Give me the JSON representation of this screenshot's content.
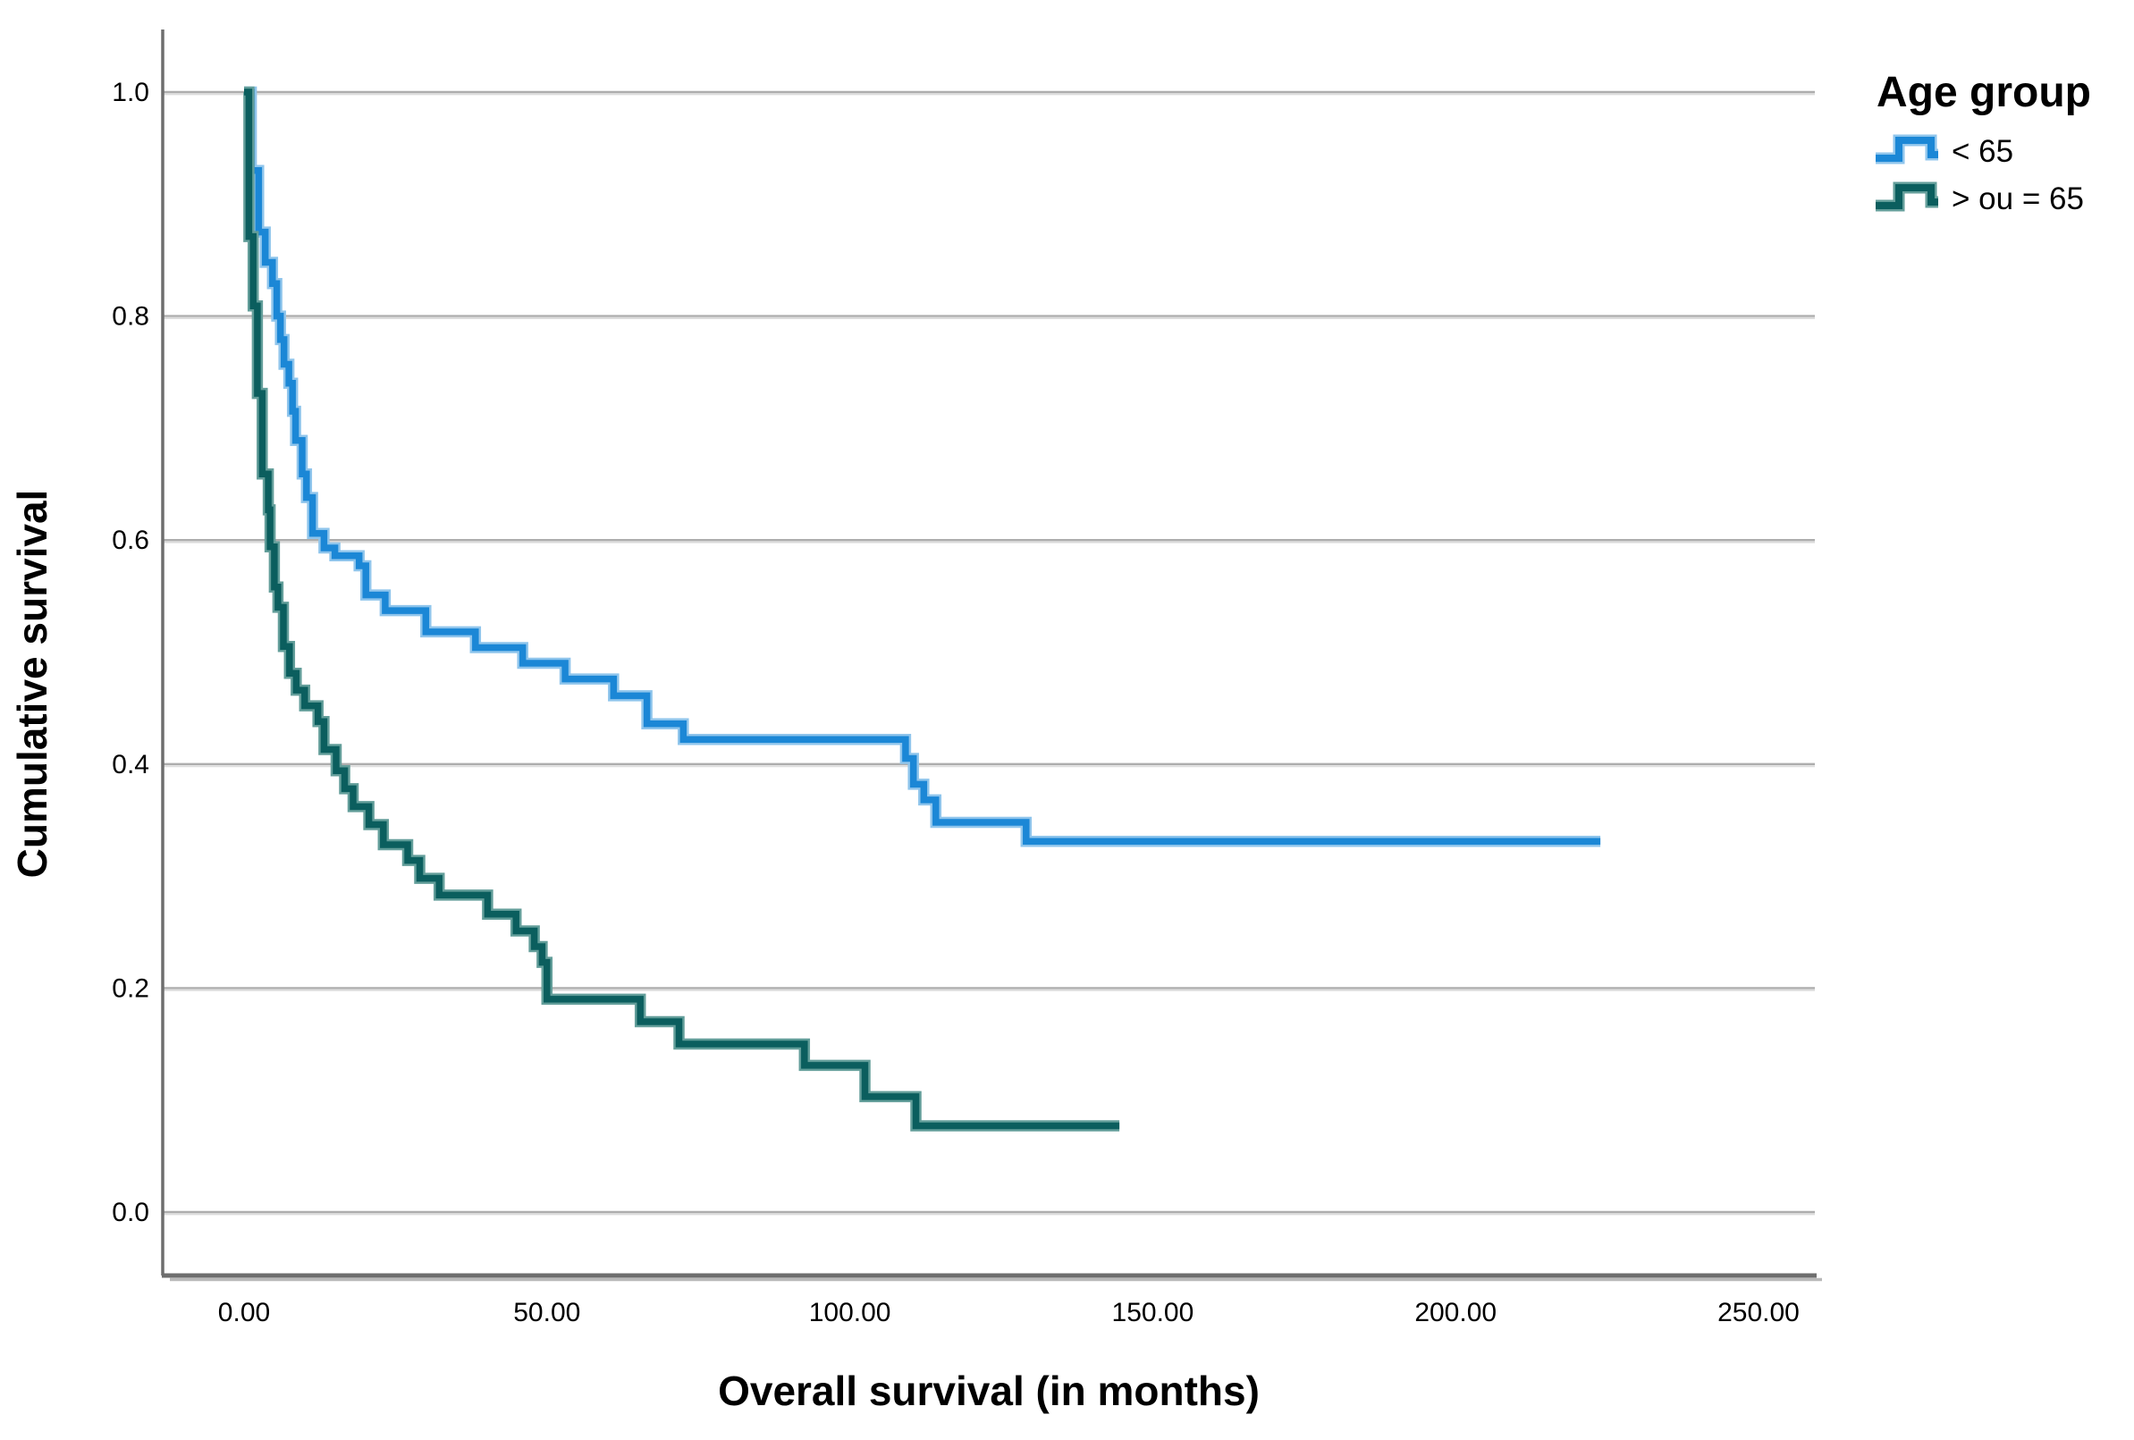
{
  "chart_data": {
    "type": "line",
    "subtype": "kaplan-meier-step",
    "title": "",
    "xlabel": "Overall survival (in months)",
    "ylabel": "Cumulative survival",
    "xlim": [
      -13,
      259
    ],
    "ylim": [
      0,
      1.05
    ],
    "grid": true,
    "grid_color": "#ADADAD",
    "grid_shadow_color": "#DCDCDC",
    "axis_color": "#6E6E6E",
    "axis_shadow_color": "#B9B9B9",
    "x_ticks": [
      {
        "value": 0,
        "label": "0.00"
      },
      {
        "value": 50,
        "label": "50.00"
      },
      {
        "value": 100,
        "label": "100.00"
      },
      {
        "value": 150,
        "label": "150.00"
      },
      {
        "value": 200,
        "label": "200.00"
      },
      {
        "value": 250,
        "label": "250.00"
      }
    ],
    "y_ticks": [
      {
        "value": 0.0,
        "label": "0.0"
      },
      {
        "value": 0.2,
        "label": "0.2"
      },
      {
        "value": 0.4,
        "label": "0.4"
      },
      {
        "value": 0.6,
        "label": "0.6"
      },
      {
        "value": 0.8,
        "label": "0.8"
      },
      {
        "value": 1.0,
        "label": "1.0"
      }
    ],
    "legend": {
      "title": "Age group",
      "position": "top-right"
    },
    "series": [
      {
        "name": "< 65",
        "color": "#1B87D6",
        "halo_color": "#8FC5EC",
        "points": [
          [
            0,
            1.0
          ],
          [
            1.2,
            0.93
          ],
          [
            2.4,
            0.875
          ],
          [
            3.5,
            0.848
          ],
          [
            4.7,
            0.829
          ],
          [
            5.4,
            0.8
          ],
          [
            6,
            0.779
          ],
          [
            6.6,
            0.757
          ],
          [
            7.4,
            0.74
          ],
          [
            8,
            0.715
          ],
          [
            8.5,
            0.689
          ],
          [
            9.6,
            0.659
          ],
          [
            10.3,
            0.638
          ],
          [
            11.3,
            0.606
          ],
          [
            13.2,
            0.593
          ],
          [
            15,
            0.586
          ],
          [
            19,
            0.577
          ],
          [
            20.1,
            0.551
          ],
          [
            23.3,
            0.537
          ],
          [
            30,
            0.518
          ],
          [
            38.2,
            0.504
          ],
          [
            46,
            0.49
          ],
          [
            53,
            0.476
          ],
          [
            61,
            0.461
          ],
          [
            66.5,
            0.436
          ],
          [
            72.5,
            0.422
          ],
          [
            109.2,
            0.405
          ],
          [
            110.5,
            0.382
          ],
          [
            112.2,
            0.368
          ],
          [
            114.2,
            0.348
          ],
          [
            129.1,
            0.331
          ],
          [
            223.9,
            0.331
          ]
        ]
      },
      {
        "name": "> ou = 65",
        "color": "#0B5E5E",
        "halo_color": "#639E9A",
        "points": [
          [
            0,
            1.0
          ],
          [
            0.8,
            0.871
          ],
          [
            1.5,
            0.809
          ],
          [
            2.2,
            0.731
          ],
          [
            3,
            0.659
          ],
          [
            4,
            0.627
          ],
          [
            4.3,
            0.594
          ],
          [
            5,
            0.558
          ],
          [
            5.6,
            0.54
          ],
          [
            6.5,
            0.505
          ],
          [
            7.5,
            0.481
          ],
          [
            8.6,
            0.466
          ],
          [
            10,
            0.452
          ],
          [
            12.2,
            0.438
          ],
          [
            13.2,
            0.413
          ],
          [
            15.2,
            0.394
          ],
          [
            16.6,
            0.378
          ],
          [
            18,
            0.362
          ],
          [
            20.6,
            0.346
          ],
          [
            23,
            0.328
          ],
          [
            27,
            0.314
          ],
          [
            29,
            0.298
          ],
          [
            32.2,
            0.283
          ],
          [
            40.2,
            0.266
          ],
          [
            44.9,
            0.251
          ],
          [
            47.9,
            0.237
          ],
          [
            49.2,
            0.223
          ],
          [
            50,
            0.19
          ],
          [
            65.4,
            0.17
          ],
          [
            71.8,
            0.15
          ],
          [
            92.5,
            0.131
          ],
          [
            102.5,
            0.103
          ],
          [
            110.9,
            0.077
          ],
          [
            144.5,
            0.077
          ]
        ]
      }
    ]
  }
}
